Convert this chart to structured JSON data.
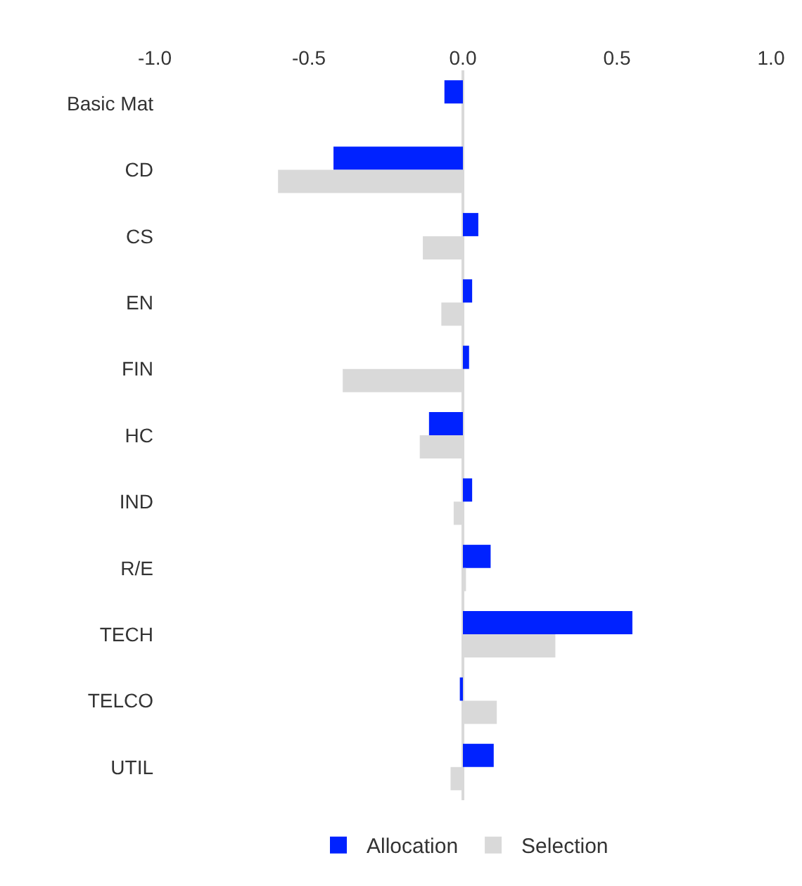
{
  "chart_data": {
    "type": "bar",
    "orientation": "horizontal",
    "categories": [
      "Basic Mat",
      "CD",
      "CS",
      "EN",
      "FIN",
      "HC",
      "IND",
      "R/E",
      "TECH",
      "TELCO",
      "UTIL"
    ],
    "series": [
      {
        "name": "Allocation",
        "color": "#0022ff",
        "values": [
          -0.06,
          -0.42,
          0.05,
          0.03,
          0.02,
          -0.11,
          0.03,
          0.09,
          0.55,
          -0.01,
          0.1
        ]
      },
      {
        "name": "Selection",
        "color": "#d9d9d9",
        "values": [
          null,
          -0.6,
          -0.13,
          -0.07,
          -0.39,
          -0.14,
          -0.03,
          0.01,
          0.3,
          0.11,
          -0.04
        ]
      }
    ],
    "xlim": [
      -1,
      1
    ],
    "xticks": [
      {
        "value": -1,
        "label": "-1.0"
      },
      {
        "value": -0.5,
        "label": "-0.5"
      },
      {
        "value": 0,
        "label": "0.0"
      },
      {
        "value": 0.5,
        "label": "0.5"
      },
      {
        "value": 1,
        "label": "1.0"
      }
    ],
    "ref_lines": [
      {
        "axis": "x",
        "value": 0,
        "color": "#d9d9d9"
      }
    ],
    "grid": false,
    "legend": "bottom"
  }
}
